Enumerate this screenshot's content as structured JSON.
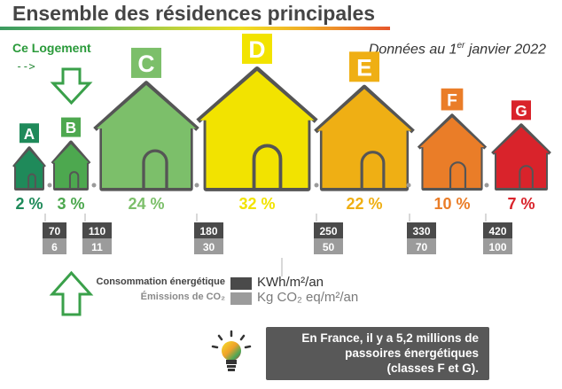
{
  "title": "Ensemble des résidences principales",
  "date_prefix": "Données au 1",
  "date_sup": "er",
  "date_suffix": " janvier 2022",
  "ce_logement": "Ce Logement",
  "arrow_text": "-->",
  "colors": {
    "A": "#1f8a5a",
    "B": "#4da84f",
    "C": "#7cbf6a",
    "D": "#f2e300",
    "E": "#efaf14",
    "F": "#ea7d28",
    "G": "#d9232b",
    "consumption_box": "#4a4a4a",
    "emission_box": "#9b9b9b",
    "arrow": "#3aa04a"
  },
  "chart_data": {
    "type": "bar",
    "categories": [
      "A",
      "B",
      "C",
      "D",
      "E",
      "F",
      "G"
    ],
    "values": [
      2,
      3,
      24,
      32,
      22,
      10,
      7
    ],
    "value_labels": [
      "2 %",
      "3 %",
      "24 %",
      "32 %",
      "22 %",
      "10 %",
      "7 %"
    ],
    "unit": "%",
    "thresholds": [
      {
        "energy": "70",
        "emissions": "6"
      },
      {
        "energy": "110",
        "emissions": "11"
      },
      {
        "energy": "180",
        "emissions": "30"
      },
      {
        "energy": "250",
        "emissions": "50"
      },
      {
        "energy": "330",
        "emissions": "70"
      },
      {
        "energy": "420",
        "emissions": "100"
      }
    ],
    "highlighted_class": "B"
  },
  "legend": {
    "consumption_label": "Consommation énergétique",
    "consumption_unit": "KWh/m²/an",
    "emissions_label": "Émissions de CO₂",
    "emissions_unit": "Kg CO₂ eq/m²/an"
  },
  "info": {
    "line1": "En France, il y a 5,2 millions de",
    "line2": "passoires énergétiques",
    "line3": "(classes F et G)."
  }
}
